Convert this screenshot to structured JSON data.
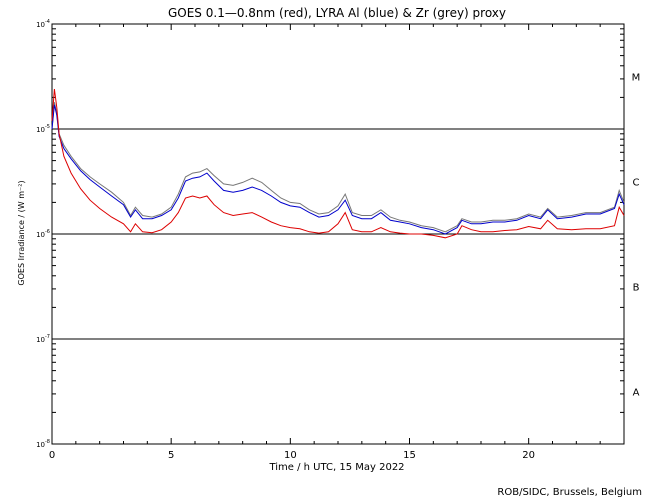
{
  "chart_data": {
    "type": "line",
    "title": "GOES 0.1—0.8nm (red), LYRA Al (blue) & Zr (grey) proxy",
    "xlabel": "Time / h UTC, 15 May 2022",
    "ylabel": "GOES Irradiance / (W m⁻²)",
    "xlim": [
      0,
      24
    ],
    "ylim": [
      1e-08,
      0.0001
    ],
    "yscale": "log",
    "grid": false,
    "x_ticks": [
      0,
      5,
      10,
      15,
      20
    ],
    "x_tick_labels": [
      "0",
      "5",
      "10",
      "15",
      "20"
    ],
    "y_ticks": [
      1e-08,
      1e-07,
      1e-06,
      1e-05,
      0.0001
    ],
    "y_tick_labels": [
      {
        "base": "10",
        "exp": "-8"
      },
      {
        "base": "10",
        "exp": "-7"
      },
      {
        "base": "10",
        "exp": "-6"
      },
      {
        "base": "10",
        "exp": "-5"
      },
      {
        "base": "10",
        "exp": "-4"
      }
    ],
    "reference_lines": [
      1e-07,
      1e-06,
      1e-05
    ],
    "flare_classes": [
      {
        "label": "A",
        "center": 3.16e-08
      },
      {
        "label": "B",
        "center": 3.16e-07
      },
      {
        "label": "C",
        "center": 3.16e-06
      },
      {
        "label": "M",
        "center": 3.16e-05
      }
    ],
    "series": [
      {
        "color": "#777777",
        "x": [
          0,
          0.1,
          0.2,
          0.3,
          0.5,
          0.8,
          1.2,
          1.6,
          2,
          2.5,
          3,
          3.3,
          3.5,
          3.8,
          4.2,
          4.6,
          5,
          5.3,
          5.6,
          5.9,
          6.2,
          6.5,
          6.8,
          7.2,
          7.6,
          8,
          8.4,
          8.8,
          9.2,
          9.6,
          10,
          10.4,
          10.8,
          11.2,
          11.6,
          12,
          12.3,
          12.6,
          13,
          13.4,
          13.8,
          14.2,
          14.6,
          15,
          15.5,
          16,
          16.5,
          17,
          17.2,
          17.6,
          18,
          18.5,
          19,
          19.5,
          20,
          20.5,
          20.8,
          21.2,
          21.8,
          22.4,
          23,
          23.6,
          23.8,
          24
        ],
        "values": [
          1e-05,
          1.8e-05,
          1.4e-05,
          9e-06,
          7e-06,
          5.5e-06,
          4.2e-06,
          3.5e-06,
          3e-06,
          2.5e-06,
          2e-06,
          1.5e-06,
          1.8e-06,
          1.5e-06,
          1.45e-06,
          1.55e-06,
          1.8e-06,
          2.4e-06,
          3.5e-06,
          3.8e-06,
          3.9e-06,
          4.2e-06,
          3.6e-06,
          3e-06,
          2.9e-06,
          3.1e-06,
          3.4e-06,
          3.1e-06,
          2.6e-06,
          2.2e-06,
          2e-06,
          1.95e-06,
          1.7e-06,
          1.55e-06,
          1.6e-06,
          1.85e-06,
          2.4e-06,
          1.6e-06,
          1.5e-06,
          1.5e-06,
          1.7e-06,
          1.45e-06,
          1.35e-06,
          1.3e-06,
          1.2e-06,
          1.15e-06,
          1.05e-06,
          1.2e-06,
          1.4e-06,
          1.3e-06,
          1.3e-06,
          1.35e-06,
          1.35e-06,
          1.4e-06,
          1.55e-06,
          1.45e-06,
          1.75e-06,
          1.45e-06,
          1.5e-06,
          1.6e-06,
          1.6e-06,
          1.8e-06,
          2.6e-06,
          2e-06
        ]
      },
      {
        "color": "#0000cc",
        "x": [
          0,
          0.1,
          0.2,
          0.3,
          0.5,
          0.8,
          1.2,
          1.6,
          2,
          2.5,
          3,
          3.3,
          3.5,
          3.8,
          4.2,
          4.6,
          5,
          5.3,
          5.6,
          5.9,
          6.2,
          6.5,
          6.8,
          7.2,
          7.6,
          8,
          8.4,
          8.8,
          9.2,
          9.6,
          10,
          10.4,
          10.8,
          11.2,
          11.6,
          12,
          12.3,
          12.6,
          13,
          13.4,
          13.8,
          14.2,
          14.6,
          15,
          15.5,
          16,
          16.5,
          17,
          17.2,
          17.6,
          18,
          18.5,
          19,
          19.5,
          20,
          20.5,
          20.8,
          21.2,
          21.8,
          22.4,
          23,
          23.6,
          23.8,
          24
        ],
        "values": [
          1e-05,
          1.7e-05,
          1.35e-05,
          8.5e-06,
          6.5e-06,
          5.2e-06,
          4e-06,
          3.3e-06,
          2.8e-06,
          2.3e-06,
          1.9e-06,
          1.45e-06,
          1.7e-06,
          1.4e-06,
          1.4e-06,
          1.5e-06,
          1.7e-06,
          2.2e-06,
          3.2e-06,
          3.4e-06,
          3.5e-06,
          3.8e-06,
          3.2e-06,
          2.6e-06,
          2.5e-06,
          2.6e-06,
          2.8e-06,
          2.6e-06,
          2.3e-06,
          2e-06,
          1.85e-06,
          1.8e-06,
          1.6e-06,
          1.45e-06,
          1.5e-06,
          1.7e-06,
          2.1e-06,
          1.5e-06,
          1.4e-06,
          1.4e-06,
          1.6e-06,
          1.35e-06,
          1.3e-06,
          1.25e-06,
          1.15e-06,
          1.1e-06,
          1e-06,
          1.15e-06,
          1.35e-06,
          1.25e-06,
          1.25e-06,
          1.3e-06,
          1.3e-06,
          1.35e-06,
          1.5e-06,
          1.4e-06,
          1.7e-06,
          1.4e-06,
          1.45e-06,
          1.55e-06,
          1.55e-06,
          1.75e-06,
          2.4e-06,
          1.9e-06
        ]
      },
      {
        "color": "#dd0000",
        "x": [
          0,
          0.1,
          0.2,
          0.3,
          0.5,
          0.8,
          1.2,
          1.6,
          2,
          2.5,
          3,
          3.3,
          3.5,
          3.8,
          4.2,
          4.6,
          5,
          5.3,
          5.6,
          5.9,
          6.2,
          6.5,
          6.8,
          7.2,
          7.6,
          8,
          8.4,
          8.8,
          9.2,
          9.6,
          10,
          10.4,
          10.8,
          11.2,
          11.6,
          12,
          12.3,
          12.6,
          13,
          13.4,
          13.8,
          14.2,
          14.6,
          15,
          15.5,
          16,
          16.5,
          17,
          17.2,
          17.6,
          18,
          18.5,
          19,
          19.5,
          20,
          20.5,
          20.8,
          21.2,
          21.8,
          22.4,
          23,
          23.6,
          23.8,
          24
        ],
        "values": [
          1.2e-05,
          2.4e-05,
          1.6e-05,
          9e-06,
          5.5e-06,
          3.8e-06,
          2.7e-06,
          2.1e-06,
          1.75e-06,
          1.45e-06,
          1.25e-06,
          1.05e-06,
          1.25e-06,
          1.05e-06,
          1.03e-06,
          1.1e-06,
          1.3e-06,
          1.6e-06,
          2.2e-06,
          2.3e-06,
          2.2e-06,
          2.3e-06,
          1.9e-06,
          1.6e-06,
          1.5e-06,
          1.55e-06,
          1.6e-06,
          1.45e-06,
          1.3e-06,
          1.2e-06,
          1.15e-06,
          1.12e-06,
          1.05e-06,
          1.02e-06,
          1.05e-06,
          1.25e-06,
          1.6e-06,
          1.1e-06,
          1.05e-06,
          1.05e-06,
          1.15e-06,
          1.05e-06,
          1.02e-06,
          1e-06,
          1e-06,
          9.7e-07,
          9.2e-07,
          1e-06,
          1.2e-06,
          1.1e-06,
          1.05e-06,
          1.05e-06,
          1.08e-06,
          1.1e-06,
          1.18e-06,
          1.12e-06,
          1.35e-06,
          1.12e-06,
          1.1e-06,
          1.12e-06,
          1.12e-06,
          1.2e-06,
          1.8e-06,
          1.5e-06
        ]
      }
    ]
  },
  "credit": "ROB/SIDC, Brussels, Belgium"
}
